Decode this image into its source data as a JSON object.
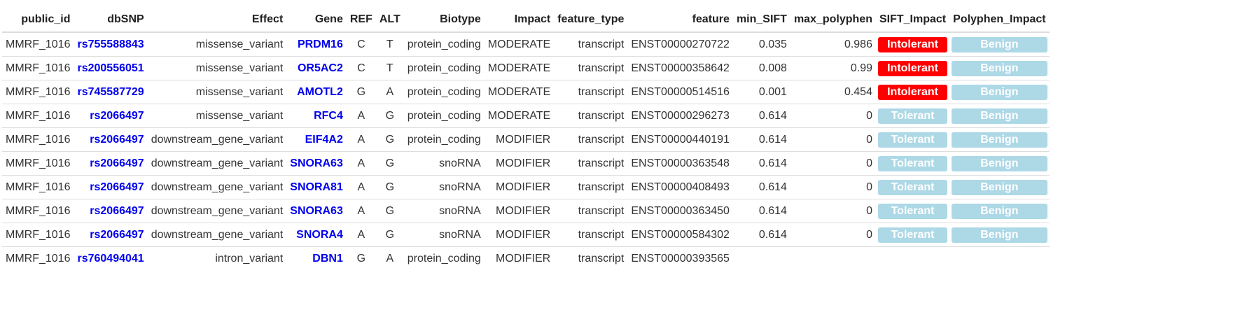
{
  "headers": [
    "public_id",
    "dbSNP",
    "Effect",
    "Gene",
    "REF",
    "ALT",
    "Biotype",
    "Impact",
    "feature_type",
    "feature",
    "min_SIFT",
    "max_polyphen",
    "SIFT_Impact",
    "Polyphen_Impact"
  ],
  "rows": [
    {
      "public_id": "MMRF_1016",
      "dbSNP": "rs755588843",
      "effect": "missense_variant",
      "gene": "PRDM16",
      "ref": "C",
      "alt": "T",
      "biotype": "protein_coding",
      "impact": "MODERATE",
      "feature_type": "transcript",
      "feature": "ENST00000270722",
      "min_sift": "0.035",
      "max_polyphen": "0.986",
      "sift_impact": "Intolerant",
      "polyphen_impact": "Benign"
    },
    {
      "public_id": "MMRF_1016",
      "dbSNP": "rs200556051",
      "effect": "missense_variant",
      "gene": "OR5AC2",
      "ref": "C",
      "alt": "T",
      "biotype": "protein_coding",
      "impact": "MODERATE",
      "feature_type": "transcript",
      "feature": "ENST00000358642",
      "min_sift": "0.008",
      "max_polyphen": "0.99",
      "sift_impact": "Intolerant",
      "polyphen_impact": "Benign"
    },
    {
      "public_id": "MMRF_1016",
      "dbSNP": "rs745587729",
      "effect": "missense_variant",
      "gene": "AMOTL2",
      "ref": "G",
      "alt": "A",
      "biotype": "protein_coding",
      "impact": "MODERATE",
      "feature_type": "transcript",
      "feature": "ENST00000514516",
      "min_sift": "0.001",
      "max_polyphen": "0.454",
      "sift_impact": "Intolerant",
      "polyphen_impact": "Benign"
    },
    {
      "public_id": "MMRF_1016",
      "dbSNP": "rs2066497",
      "effect": "missense_variant",
      "gene": "RFC4",
      "ref": "A",
      "alt": "G",
      "biotype": "protein_coding",
      "impact": "MODERATE",
      "feature_type": "transcript",
      "feature": "ENST00000296273",
      "min_sift": "0.614",
      "max_polyphen": "0",
      "sift_impact": "Tolerant",
      "polyphen_impact": "Benign"
    },
    {
      "public_id": "MMRF_1016",
      "dbSNP": "rs2066497",
      "effect": "downstream_gene_variant",
      "gene": "EIF4A2",
      "ref": "A",
      "alt": "G",
      "biotype": "protein_coding",
      "impact": "MODIFIER",
      "feature_type": "transcript",
      "feature": "ENST00000440191",
      "min_sift": "0.614",
      "max_polyphen": "0",
      "sift_impact": "Tolerant",
      "polyphen_impact": "Benign"
    },
    {
      "public_id": "MMRF_1016",
      "dbSNP": "rs2066497",
      "effect": "downstream_gene_variant",
      "gene": "SNORA63",
      "ref": "A",
      "alt": "G",
      "biotype": "snoRNA",
      "impact": "MODIFIER",
      "feature_type": "transcript",
      "feature": "ENST00000363548",
      "min_sift": "0.614",
      "max_polyphen": "0",
      "sift_impact": "Tolerant",
      "polyphen_impact": "Benign"
    },
    {
      "public_id": "MMRF_1016",
      "dbSNP": "rs2066497",
      "effect": "downstream_gene_variant",
      "gene": "SNORA81",
      "ref": "A",
      "alt": "G",
      "biotype": "snoRNA",
      "impact": "MODIFIER",
      "feature_type": "transcript",
      "feature": "ENST00000408493",
      "min_sift": "0.614",
      "max_polyphen": "0",
      "sift_impact": "Tolerant",
      "polyphen_impact": "Benign"
    },
    {
      "public_id": "MMRF_1016",
      "dbSNP": "rs2066497",
      "effect": "downstream_gene_variant",
      "gene": "SNORA63",
      "ref": "A",
      "alt": "G",
      "biotype": "snoRNA",
      "impact": "MODIFIER",
      "feature_type": "transcript",
      "feature": "ENST00000363450",
      "min_sift": "0.614",
      "max_polyphen": "0",
      "sift_impact": "Tolerant",
      "polyphen_impact": "Benign"
    },
    {
      "public_id": "MMRF_1016",
      "dbSNP": "rs2066497",
      "effect": "downstream_gene_variant",
      "gene": "SNORA4",
      "ref": "A",
      "alt": "G",
      "biotype": "snoRNA",
      "impact": "MODIFIER",
      "feature_type": "transcript",
      "feature": "ENST00000584302",
      "min_sift": "0.614",
      "max_polyphen": "0",
      "sift_impact": "Tolerant",
      "polyphen_impact": "Benign"
    },
    {
      "public_id": "MMRF_1016",
      "dbSNP": "rs760494041",
      "effect": "intron_variant",
      "gene": "DBN1",
      "ref": "G",
      "alt": "A",
      "biotype": "protein_coding",
      "impact": "MODIFIER",
      "feature_type": "transcript",
      "feature": "ENST00000393565",
      "min_sift": "",
      "max_polyphen": "",
      "sift_impact": "",
      "polyphen_impact": ""
    }
  ],
  "colors": {
    "intolerant": "#ff0000",
    "tolerant": "#add8e6",
    "benign": "#add8e6",
    "link": "#0000ee"
  }
}
